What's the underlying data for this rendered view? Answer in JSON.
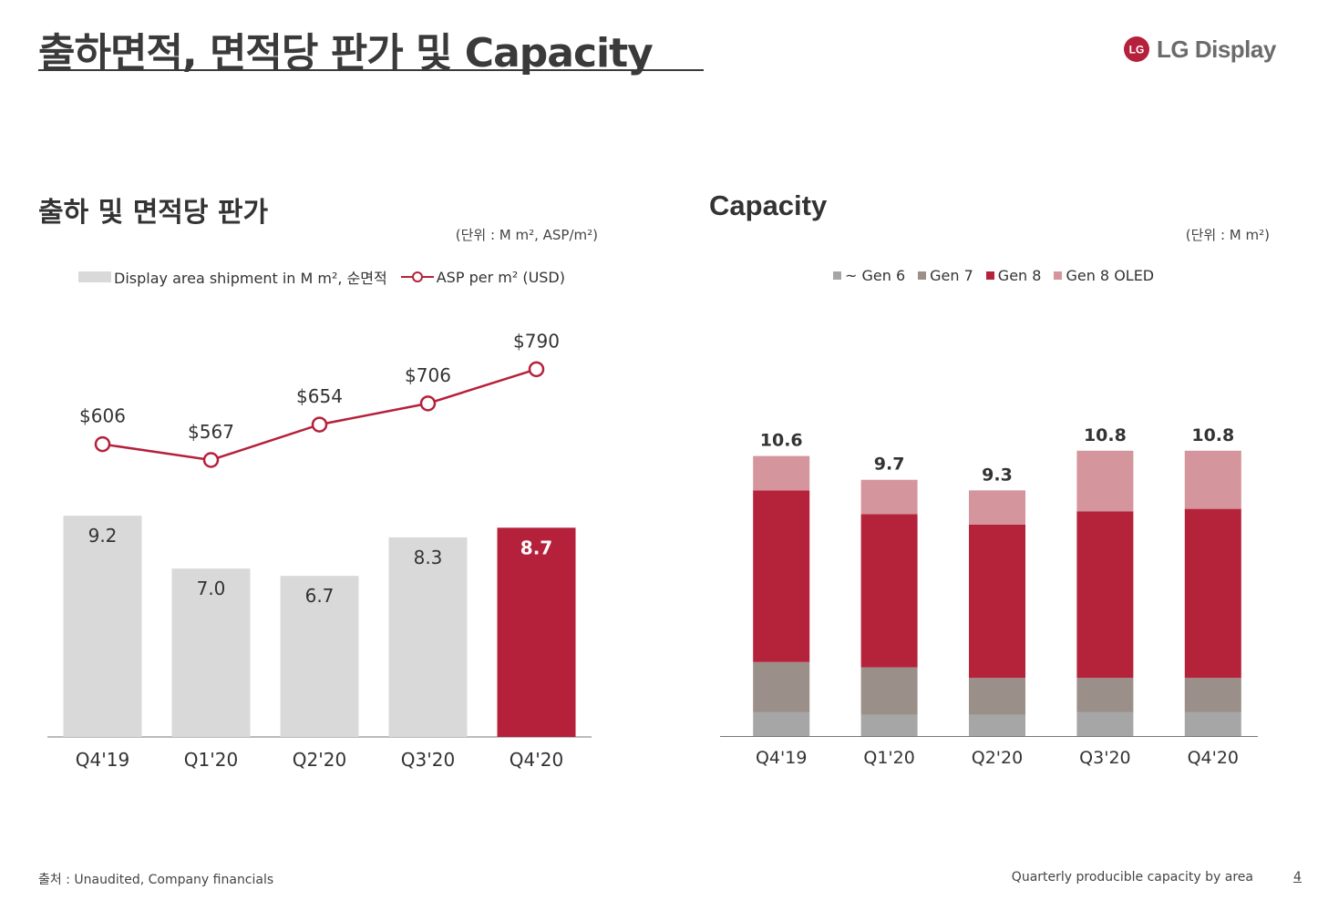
{
  "header": {
    "title": "출하면적, 면적당 판가 및 Capacity",
    "brand": "LG Display",
    "brand_mark": "LG"
  },
  "left": {
    "title": "출하 및 면적당 판가",
    "unit": "(단위 : M m², ASP/m²)",
    "legend": {
      "bars": "Display area shipment in M m², 순면적",
      "line": "ASP per m² (USD)"
    }
  },
  "right": {
    "title": "Capacity",
    "unit": "(단위 : M m²)",
    "legend": [
      "~ Gen 6",
      "Gen 7",
      "Gen 8",
      "Gen 8 OLED"
    ]
  },
  "footer": {
    "source": "출처 : Unaudited, Company financials",
    "note": "Quarterly producible capacity by area",
    "page": "4"
  },
  "colors": {
    "accent": "#b5213b",
    "bar_grey": "#d9d9d9",
    "gen6": "#a6a6a6",
    "gen7": "#9b8f89",
    "gen8": "#b5233b",
    "gen8_oled": "#d4959c",
    "text": "#333333"
  },
  "chart_data": [
    {
      "type": "bar",
      "categories": [
        "Q4'19",
        "Q1'20",
        "Q2'20",
        "Q3'20",
        "Q4'20"
      ],
      "series": [
        {
          "name": "Display area shipment in M m², 순면적",
          "values": [
            9.2,
            7.0,
            6.7,
            8.3,
            8.7
          ],
          "labels": [
            "9.2",
            "7.0",
            "6.7",
            "8.3",
            "8.7"
          ],
          "highlight_index": 4
        },
        {
          "name": "ASP per m² (USD)",
          "type": "line",
          "values": [
            606,
            567,
            654,
            706,
            790
          ],
          "labels": [
            "$606",
            "$567",
            "$654",
            "$706",
            "$790"
          ]
        }
      ],
      "legend": "top",
      "grid": false
    },
    {
      "type": "bar",
      "stacked": true,
      "categories": [
        "Q4'19",
        "Q1'20",
        "Q2'20",
        "Q3'20",
        "Q4'20"
      ],
      "totals": [
        10.6,
        9.7,
        9.3,
        10.8,
        10.8
      ],
      "total_labels": [
        "10.6",
        "9.7",
        "9.3",
        "10.8",
        "10.8"
      ],
      "series": [
        {
          "name": "~ Gen 6",
          "values": [
            0.9,
            0.8,
            0.8,
            0.9,
            0.9
          ]
        },
        {
          "name": "Gen 7",
          "values": [
            1.9,
            1.8,
            1.4,
            1.3,
            1.3
          ]
        },
        {
          "name": "Gen 8",
          "values": [
            6.5,
            5.8,
            5.8,
            6.3,
            6.4
          ]
        },
        {
          "name": "Gen 8 OLED",
          "values": [
            1.3,
            1.3,
            1.3,
            2.3,
            2.2
          ]
        }
      ],
      "legend": "top",
      "grid": false
    }
  ]
}
